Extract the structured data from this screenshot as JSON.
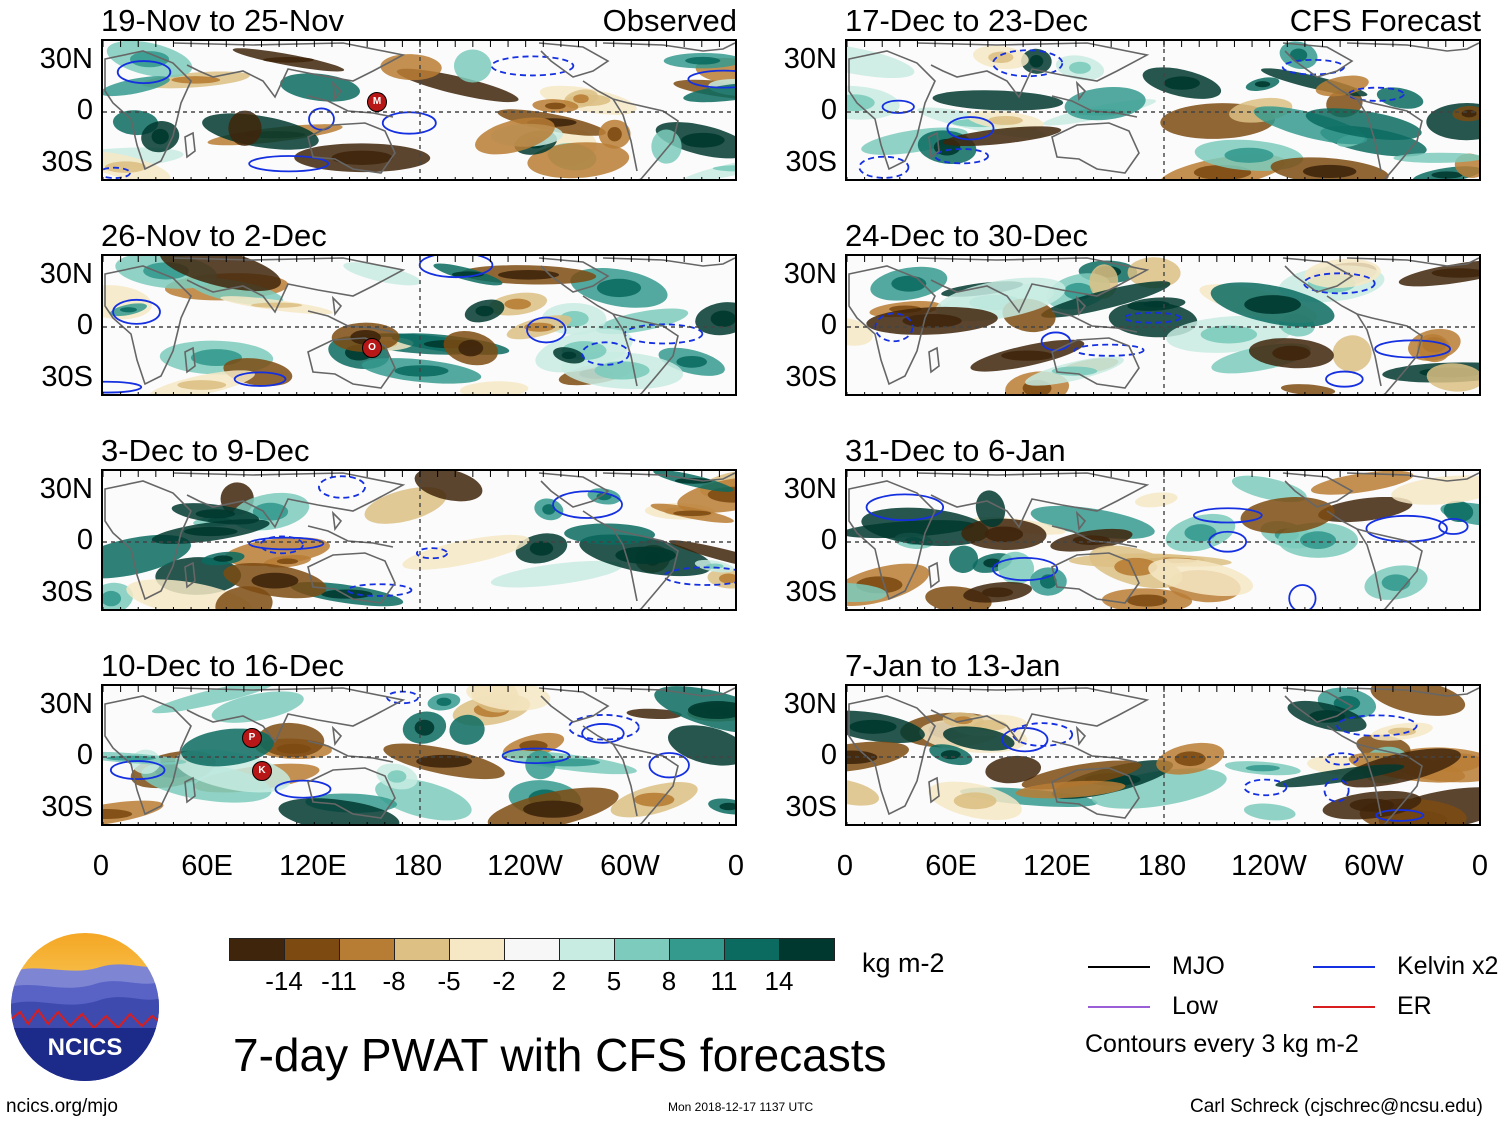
{
  "panels": [
    {
      "id": "obs1",
      "title": "19-Nov to 25-Nov",
      "label": "Observed"
    },
    {
      "id": "obs2",
      "title": "26-Nov to 2-Dec",
      "label": ""
    },
    {
      "id": "obs3",
      "title": "3-Dec to 9-Dec",
      "label": ""
    },
    {
      "id": "obs4",
      "title": "10-Dec to 16-Dec",
      "label": ""
    },
    {
      "id": "fc1",
      "title": "17-Dec to 23-Dec",
      "label": "CFS Forecast"
    },
    {
      "id": "fc2",
      "title": "24-Dec to 30-Dec",
      "label": ""
    },
    {
      "id": "fc3",
      "title": "31-Dec to 6-Jan",
      "label": ""
    },
    {
      "id": "fc4",
      "title": "7-Jan to 13-Jan",
      "label": ""
    }
  ],
  "lat_labels": [
    "30N",
    "0",
    "30S"
  ],
  "lon_labels": [
    "0",
    "60E",
    "120E",
    "180",
    "120W",
    "60W",
    "0"
  ],
  "colorbar": {
    "colors": [
      "#3f250b",
      "#7d4b12",
      "#b87d34",
      "#dcc084",
      "#f6e8c4",
      "#f7f7f7",
      "#c8ebe2",
      "#7ccbbc",
      "#359a8e",
      "#0b6b60",
      "#00382f"
    ],
    "ticks": [
      "-14",
      "-11",
      "-8",
      "-5",
      "-2",
      "2",
      "5",
      "8",
      "11",
      "14"
    ],
    "unit": "kg m-2"
  },
  "legend": {
    "items": [
      {
        "label": "MJO",
        "color": "#000000"
      },
      {
        "label": "Low",
        "color": "#9a5fd6"
      },
      {
        "label": "Kelvin x2",
        "color": "#1530e0"
      },
      {
        "label": "ER",
        "color": "#d81e1e"
      }
    ],
    "contours_note": "Contours every 3 kg m-2"
  },
  "storm_markers": [
    {
      "panel": "obs1",
      "letter": "M"
    },
    {
      "panel": "obs2",
      "letter": "O"
    },
    {
      "panel": "obs4",
      "letter": "P"
    },
    {
      "panel": "obs4",
      "letter": "K"
    }
  ],
  "logo": {
    "text": "NCICS"
  },
  "main_title": "7-day PWAT with CFS forecasts",
  "footer": {
    "website": "ncics.org/mjo",
    "timestamp": "Mon 2018-12-17 1137 UTC",
    "author": "Carl Schreck (cjschrec@ncsu.edu)"
  }
}
